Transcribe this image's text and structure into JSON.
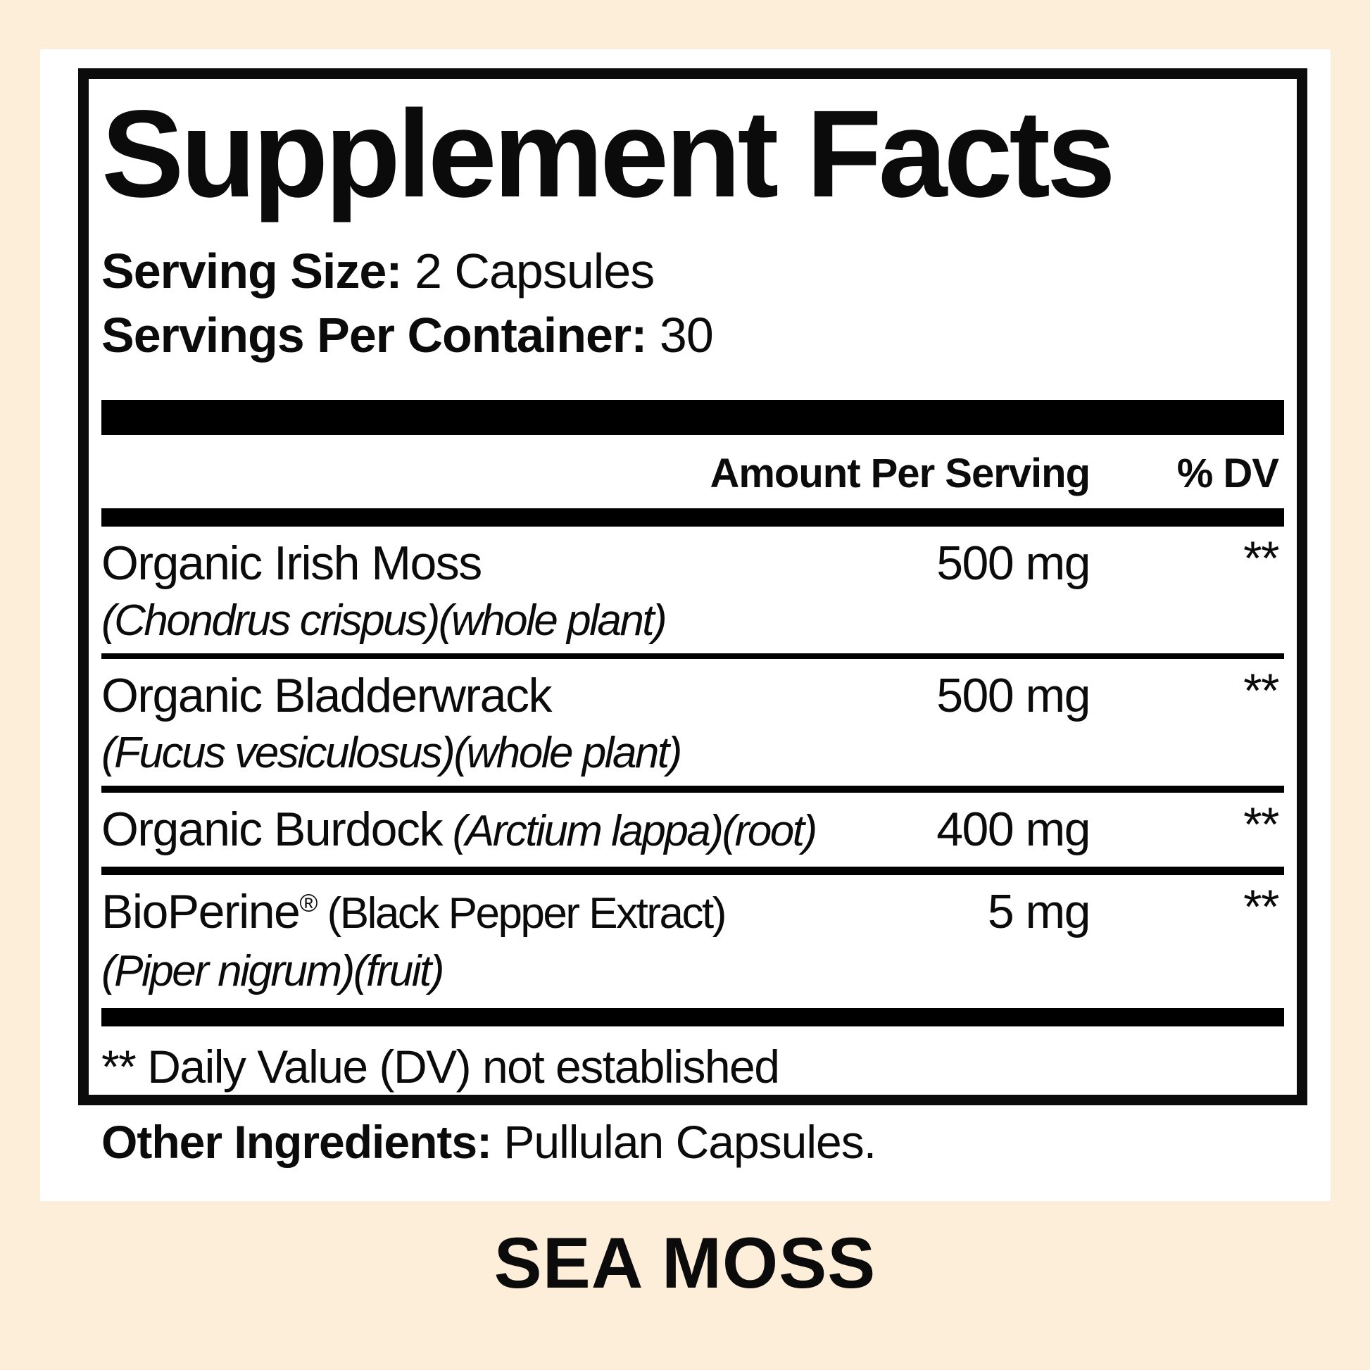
{
  "page": {
    "background_color": "#fdeeda",
    "card_color": "#ffffff",
    "ink_color": "#0b0b0b"
  },
  "label": {
    "title": "Supplement Facts",
    "serving_size_label": "Serving Size:",
    "serving_size_value": "2 Capsules",
    "servings_per_container_label": "Servings Per Container:",
    "servings_per_container_value": "30",
    "columns": {
      "amount_header": "Amount Per Serving",
      "dv_header": "% DV"
    },
    "rows": [
      {
        "name": "Organic Irish Moss",
        "subline": "(Chondrus crispus)(whole plant)",
        "amount": "500 mg",
        "dv": "**"
      },
      {
        "name": "Organic Bladderwrack",
        "subline": "(Fucus vesiculosus)(whole plant)",
        "amount": "500 mg",
        "dv": "**"
      },
      {
        "name": "Organic Burdock",
        "note": "(Arctium lappa)(root)",
        "note_style": "italic",
        "amount": "400 mg",
        "dv": "**"
      },
      {
        "name": "BioPerine",
        "reg_mark": "®",
        "note": "(Black Pepper Extract)",
        "note_style": "plain",
        "subline": "(Piper nigrum)(fruit)",
        "amount": "5 mg",
        "dv": "**"
      }
    ],
    "footnote": "** Daily Value (DV) not established",
    "other_ingredients_label": "Other Ingredients:",
    "other_ingredients_value": "Pullulan Capsules.",
    "product_name": "SEA MOSS"
  }
}
